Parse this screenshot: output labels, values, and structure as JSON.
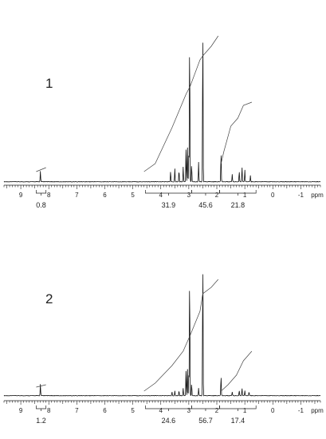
{
  "chart_data": [
    {
      "type": "line",
      "panel_label": "1",
      "x_unit": "ppm",
      "xlim": [
        9.6,
        -1.7
      ],
      "x_ticks": [
        9,
        8,
        7,
        6,
        5,
        4,
        3,
        2,
        1,
        0,
        -1
      ],
      "peaks": [
        {
          "ppm": 8.3,
          "height": 0.07
        },
        {
          "ppm": 3.65,
          "height": 0.07
        },
        {
          "ppm": 3.5,
          "height": 0.09
        },
        {
          "ppm": 3.35,
          "height": 0.08
        },
        {
          "ppm": 3.2,
          "height": 0.1
        },
        {
          "ppm": 3.1,
          "height": 0.22
        },
        {
          "ppm": 3.05,
          "height": 0.25
        },
        {
          "ppm": 3.0,
          "height": 0.19
        },
        {
          "ppm": 2.97,
          "height": 1.0
        },
        {
          "ppm": 2.9,
          "height": 0.12
        },
        {
          "ppm": 2.65,
          "height": 0.13
        },
        {
          "ppm": 2.5,
          "height": 1.08
        },
        {
          "ppm": 1.85,
          "height": 0.2
        },
        {
          "ppm": 1.45,
          "height": 0.05
        },
        {
          "ppm": 1.2,
          "height": 0.07
        },
        {
          "ppm": 1.1,
          "height": 0.1
        },
        {
          "ppm": 1.0,
          "height": 0.08
        },
        {
          "ppm": 0.8,
          "height": 0.04
        }
      ],
      "integrals": [
        {
          "label": "0.8",
          "from": 8.45,
          "to": 8.1
        },
        {
          "label": "31.9",
          "from": 4.55,
          "to": 2.9
        },
        {
          "label": "45.6",
          "from": 2.9,
          "to": 1.9
        },
        {
          "label": "21.8",
          "from": 1.9,
          "to": 0.6
        }
      ]
    },
    {
      "type": "line",
      "panel_label": "2",
      "x_unit": "ppm",
      "xlim": [
        9.6,
        -1.7
      ],
      "x_ticks": [
        9,
        8,
        7,
        6,
        5,
        4,
        3,
        2,
        1,
        0,
        -1
      ],
      "peaks": [
        {
          "ppm": 8.3,
          "height": 0.09
        },
        {
          "ppm": 3.6,
          "height": 0.03
        },
        {
          "ppm": 3.5,
          "height": 0.04
        },
        {
          "ppm": 3.35,
          "height": 0.04
        },
        {
          "ppm": 3.2,
          "height": 0.06
        },
        {
          "ppm": 3.1,
          "height": 0.2
        },
        {
          "ppm": 3.05,
          "height": 0.23
        },
        {
          "ppm": 3.0,
          "height": 0.17
        },
        {
          "ppm": 2.97,
          "height": 1.0
        },
        {
          "ppm": 2.9,
          "height": 0.1
        },
        {
          "ppm": 2.65,
          "height": 0.06
        },
        {
          "ppm": 2.5,
          "height": 1.12
        },
        {
          "ppm": 1.85,
          "height": 0.16
        },
        {
          "ppm": 1.45,
          "height": 0.03
        },
        {
          "ppm": 1.2,
          "height": 0.04
        },
        {
          "ppm": 1.1,
          "height": 0.06
        },
        {
          "ppm": 1.0,
          "height": 0.04
        },
        {
          "ppm": 0.85,
          "height": 0.03
        }
      ],
      "integrals": [
        {
          "label": "1.2",
          "from": 8.45,
          "to": 8.1
        },
        {
          "label": "24.6",
          "from": 4.55,
          "to": 2.9
        },
        {
          "label": "56.7",
          "from": 2.9,
          "to": 1.9
        },
        {
          "label": "17.4",
          "from": 1.9,
          "to": 0.6
        }
      ]
    }
  ]
}
